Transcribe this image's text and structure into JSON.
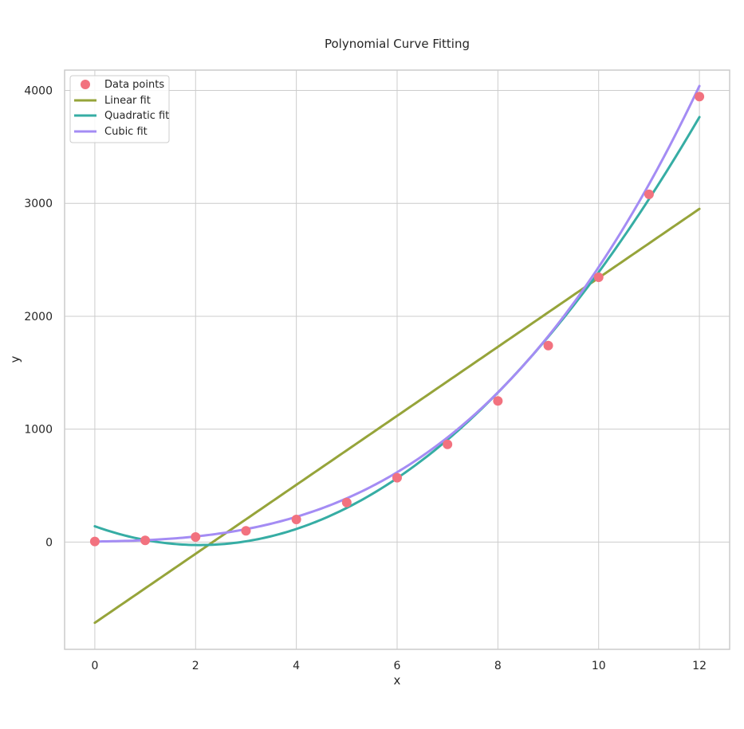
{
  "chart_data": {
    "type": "scatter",
    "title": "Polynomial Curve Fitting",
    "xlabel": "x",
    "ylabel": "y",
    "xlim": [
      -0.6,
      12.6
    ],
    "ylim": [
      -950,
      4180
    ],
    "xticks": [
      0,
      2,
      4,
      6,
      8,
      10,
      12
    ],
    "yticks": [
      0,
      1000,
      2000,
      3000,
      4000
    ],
    "grid": true,
    "legend_position": "top-left",
    "points": {
      "name": "Data points",
      "color": "#f2727f",
      "x": [
        0,
        1,
        2,
        3,
        4,
        5,
        6,
        7,
        8,
        9,
        10,
        11,
        12
      ],
      "y": [
        5,
        15,
        45,
        100,
        200,
        350,
        570,
        865,
        1250,
        1740,
        2345,
        3080,
        3945
      ]
    },
    "series": [
      {
        "name": "Linear fit",
        "color": "#96a43a",
        "kind": "poly",
        "coef": [
          -715,
          305.5
        ]
      },
      {
        "name": "Quadratic fit",
        "color": "#36ada4",
        "kind": "poly",
        "coef": [
          140,
          -160,
          38.5
        ]
      },
      {
        "name": "Cubic fit",
        "color": "#a48cf4",
        "kind": "poly",
        "coef": [
          5,
          5,
          4.8,
          1.9
        ]
      }
    ]
  }
}
